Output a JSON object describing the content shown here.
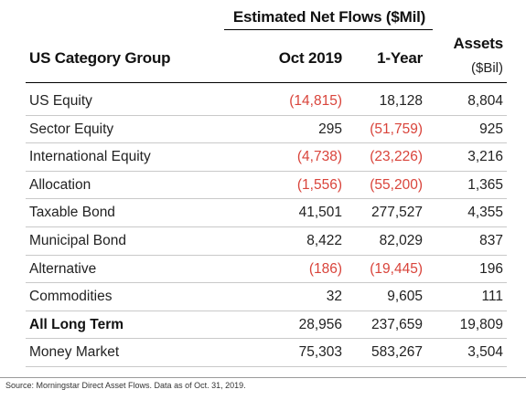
{
  "table": {
    "group_header": "Estimated Net Flows ($Mil)",
    "columns": {
      "category": "US Category Group",
      "oct": "Oct 2019",
      "year": "1-Year",
      "assets": "Assets",
      "assets_unit": "($Bil)"
    },
    "rows": [
      {
        "category": "US Equity",
        "oct": "(14,815)",
        "oct_negative": true,
        "year": "18,128",
        "year_negative": false,
        "assets": "8,804"
      },
      {
        "category": "Sector Equity",
        "oct": "295",
        "oct_negative": false,
        "year": "(51,759)",
        "year_negative": true,
        "assets": "925"
      },
      {
        "category": "International Equity",
        "oct": "(4,738)",
        "oct_negative": true,
        "year": "(23,226)",
        "year_negative": true,
        "assets": "3,216"
      },
      {
        "category": "Allocation",
        "oct": "(1,556)",
        "oct_negative": true,
        "year": "(55,200)",
        "year_negative": true,
        "assets": "1,365"
      },
      {
        "category": "Taxable Bond",
        "oct": "41,501",
        "oct_negative": false,
        "year": "277,527",
        "year_negative": false,
        "assets": "4,355"
      },
      {
        "category": "Municipal Bond",
        "oct": "8,422",
        "oct_negative": false,
        "year": "82,029",
        "year_negative": false,
        "assets": "837"
      },
      {
        "category": "Alternative",
        "oct": "(186)",
        "oct_negative": true,
        "year": "(19,445)",
        "year_negative": true,
        "assets": "196"
      },
      {
        "category": "Commodities",
        "oct": "32",
        "oct_negative": false,
        "year": "9,605",
        "year_negative": false,
        "assets": "111"
      },
      {
        "category": "All Long Term",
        "oct": "28,956",
        "oct_negative": false,
        "year": "237,659",
        "year_negative": false,
        "assets": "19,809",
        "bold": true
      },
      {
        "category": "Money Market",
        "oct": "75,303",
        "oct_negative": false,
        "year": "583,267",
        "year_negative": false,
        "assets": "3,504"
      }
    ]
  },
  "source": "Source: Morningstar Direct Asset Flows. Data as of Oct. 31, 2019.",
  "colors": {
    "negative": "#d9443b",
    "text": "#222222",
    "rule": "#c9c9c9"
  }
}
